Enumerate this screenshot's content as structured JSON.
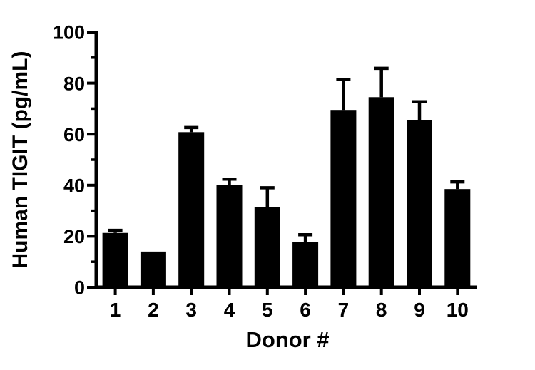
{
  "figure": {
    "background": "#ffffff"
  },
  "chart_data": {
    "type": "bar",
    "title": "",
    "xlabel": "Donor #",
    "ylabel": "Human TIGIT (pg/mL)",
    "categories": [
      "1",
      "2",
      "3",
      "4",
      "5",
      "6",
      "7",
      "8",
      "9",
      "10"
    ],
    "series": [
      {
        "name": "Human TIGIT",
        "values": [
          21.3,
          14.0,
          60.8,
          40.0,
          31.5,
          17.6,
          69.5,
          74.5,
          65.5,
          38.5
        ],
        "errors": [
          1.0,
          0,
          1.8,
          2.4,
          7.5,
          3.0,
          12.0,
          11.3,
          7.2,
          2.8
        ],
        "error_direction": "up"
      }
    ],
    "ylim": [
      0,
      100
    ],
    "yticks_major": [
      0,
      20,
      40,
      60,
      80,
      100
    ],
    "yticks_minor": [
      10,
      30,
      50,
      70,
      90
    ],
    "bar_color": "#000000",
    "axis_color": "#000000",
    "grid": false,
    "legend": false,
    "background": "#ffffff"
  }
}
